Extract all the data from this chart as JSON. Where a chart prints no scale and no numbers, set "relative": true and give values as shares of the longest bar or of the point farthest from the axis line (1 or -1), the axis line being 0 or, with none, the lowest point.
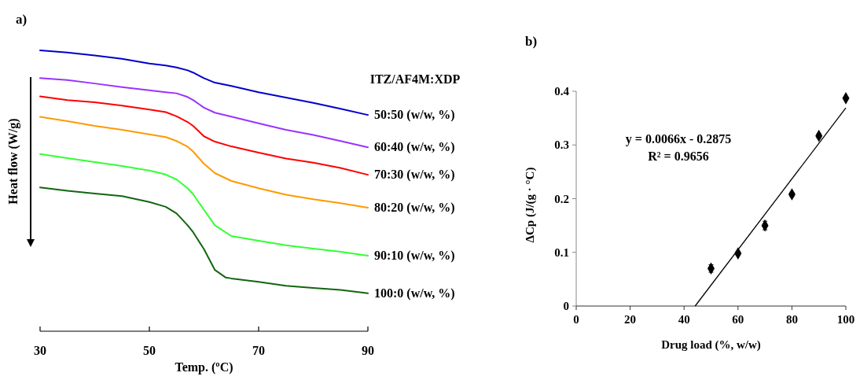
{
  "chart_data": [
    {
      "type": "line",
      "title": "a)",
      "xlabel": "Temp. (ºC)",
      "ylabel": "Heat flow (W/g)",
      "legend_title": "ITZ/AF4M:XDP",
      "relative": true,
      "tick_labels": "x",
      "xlim": [
        30,
        90
      ],
      "xticks": [
        30,
        50,
        70,
        90
      ],
      "x": [
        30,
        35,
        40,
        45,
        50,
        53,
        55,
        57,
        58,
        60,
        62,
        65,
        70,
        75,
        80,
        85,
        90
      ],
      "legend": "right",
      "marker": "none",
      "line_style": "solid",
      "series": [
        {
          "name": "50:50 (w/w, %)",
          "color": "#0000cc",
          "values": [
            1.0,
            0.992,
            0.982,
            0.97,
            0.953,
            0.946,
            0.939,
            0.929,
            0.921,
            0.901,
            0.885,
            0.873,
            0.851,
            0.832,
            0.813,
            0.792,
            0.77
          ]
        },
        {
          "name": "60:40 (w/w, %)",
          "color": "#9933ff",
          "values": [
            0.901,
            0.894,
            0.882,
            0.869,
            0.858,
            0.851,
            0.847,
            0.834,
            0.823,
            0.796,
            0.778,
            0.764,
            0.74,
            0.717,
            0.699,
            0.677,
            0.655
          ]
        },
        {
          "name": "70:30 (w/w, %)",
          "color": "#ff0000",
          "values": [
            0.836,
            0.823,
            0.815,
            0.803,
            0.789,
            0.78,
            0.765,
            0.745,
            0.731,
            0.694,
            0.675,
            0.658,
            0.636,
            0.615,
            0.6,
            0.581,
            0.557
          ]
        },
        {
          "name": "80:20 (w/w, %)",
          "color": "#ff9900",
          "values": [
            0.763,
            0.748,
            0.731,
            0.717,
            0.701,
            0.691,
            0.677,
            0.657,
            0.64,
            0.596,
            0.563,
            0.535,
            0.509,
            0.486,
            0.47,
            0.456,
            0.44
          ]
        },
        {
          "name": "90:10 (w/w, %)",
          "color": "#33ff33",
          "values": [
            0.631,
            0.616,
            0.602,
            0.588,
            0.572,
            0.558,
            0.54,
            0.509,
            0.488,
            0.432,
            0.377,
            0.339,
            0.322,
            0.306,
            0.294,
            0.283,
            0.269
          ]
        },
        {
          "name": "100:0 (w/w, %)",
          "color": "#116611",
          "x": [
            30,
            35,
            40,
            45,
            50,
            53,
            55,
            57,
            58,
            60,
            62,
            64,
            65,
            70,
            75,
            80,
            85,
            90
          ],
          "values": [
            0.512,
            0.5,
            0.49,
            0.481,
            0.46,
            0.443,
            0.419,
            0.377,
            0.353,
            0.292,
            0.218,
            0.191,
            0.188,
            0.176,
            0.162,
            0.154,
            0.147,
            0.135
          ]
        }
      ]
    },
    {
      "type": "scatter",
      "title": "b)",
      "xlabel": "Drug load (%, w/w)",
      "ylabel": "ΔCp (J/(g · °C)",
      "xlim": [
        0,
        100
      ],
      "xticks": [
        0,
        20,
        40,
        60,
        80,
        100
      ],
      "ylim": [
        0,
        0.4
      ],
      "yticks": [
        0,
        0.1,
        0.2,
        0.3,
        0.4
      ],
      "annotations": [
        "y = 0.0066x - 0.2875",
        "R² = 0.9656"
      ],
      "series": [
        {
          "type": "scatter",
          "marker": "diamond",
          "color": "#000000",
          "x": [
            50,
            60,
            70,
            80,
            90,
            100
          ],
          "values": [
            0.07,
            0.098,
            0.15,
            0.208,
            0.317,
            0.387
          ],
          "errors": [
            0.007,
            0.004,
            0.008,
            0.004,
            0.004,
            0.003
          ]
        },
        {
          "type": "line",
          "color": "#000000",
          "x": [
            44.1,
            100
          ],
          "values": [
            0,
            0.369
          ]
        }
      ]
    }
  ]
}
